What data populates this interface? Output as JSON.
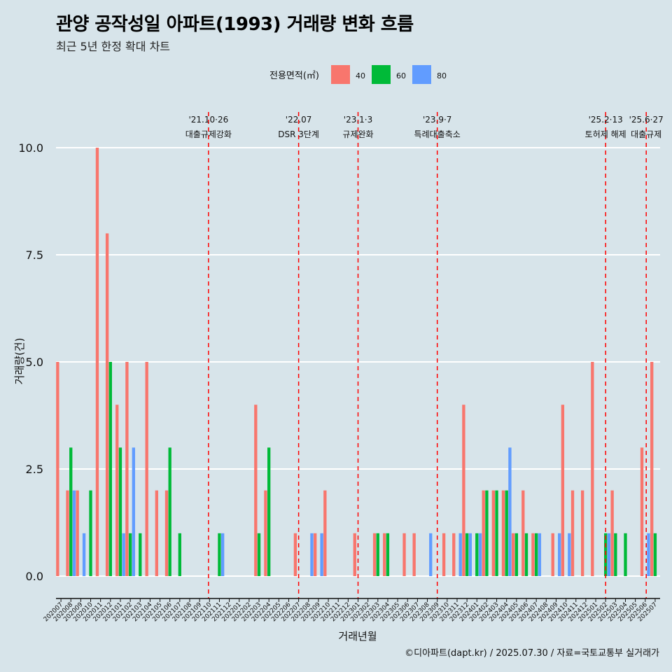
{
  "title": "관양 공작성일 아파트(1993) 거래량 변화 흐름",
  "subtitle": "최근 5년 한정 확대 차트",
  "caption": "©디아파트(dapt.kr) / 2025.07.30 / 자료=국토교통부 실거래가",
  "chart_data": {
    "type": "bar",
    "xlabel": "거래년월",
    "ylabel": "거래량(건)",
    "ylim": [
      0,
      10.6
    ],
    "yticks": [
      "0.0",
      "2.5",
      "5.0",
      "7.5",
      "10.0"
    ],
    "ytick_values": [
      0,
      2.5,
      5,
      7.5,
      10
    ],
    "grid": "horizontal",
    "legend_title": "전용면적(㎡)",
    "legend_position": "top",
    "categories": [
      "202007",
      "202008",
      "202009",
      "202010",
      "202011",
      "202012",
      "202101",
      "202102",
      "202103",
      "202104",
      "202105",
      "202106",
      "202107",
      "202108",
      "202109",
      "202110",
      "202111",
      "202112",
      "202201",
      "202202",
      "202203",
      "202204",
      "202205",
      "202206",
      "202207",
      "202208",
      "202209",
      "202210",
      "202211",
      "202212",
      "202301",
      "202302",
      "202303",
      "202304",
      "202305",
      "202306",
      "202307",
      "202308",
      "202309",
      "202310",
      "202311",
      "202312",
      "202401",
      "202402",
      "202403",
      "202404",
      "202405",
      "202406",
      "202407",
      "202408",
      "202409",
      "202410",
      "202411",
      "202412",
      "202501",
      "202502",
      "202503",
      "202504",
      "202505",
      "202506",
      "202507"
    ],
    "series": [
      {
        "name": "40",
        "color": "#f8766d",
        "values": [
          5,
          2,
          2,
          0,
          10,
          8,
          4,
          5,
          0,
          5,
          2,
          2,
          0,
          0,
          0,
          0,
          0,
          0,
          0,
          0,
          4,
          2,
          0,
          0,
          1,
          0,
          1,
          2,
          0,
          0,
          1,
          0,
          1,
          1,
          0,
          1,
          1,
          0,
          0,
          1,
          1,
          4,
          0,
          2,
          2,
          2,
          1,
          2,
          1,
          0,
          1,
          4,
          2,
          2,
          5,
          0,
          2,
          0,
          0,
          3,
          5
        ]
      },
      {
        "name": "60",
        "color": "#00ba38",
        "values": [
          0,
          3,
          0,
          2,
          0,
          5,
          3,
          1,
          1,
          0,
          0,
          3,
          1,
          0,
          0,
          0,
          1,
          0,
          0,
          0,
          1,
          3,
          0,
          0,
          0,
          0,
          0,
          0,
          0,
          0,
          0,
          0,
          1,
          1,
          0,
          0,
          0,
          0,
          0,
          0,
          0,
          1,
          1,
          2,
          2,
          2,
          1,
          1,
          1,
          0,
          0,
          0,
          0,
          0,
          0,
          1,
          1,
          1,
          0,
          0,
          1
        ]
      },
      {
        "name": "80",
        "color": "#619cff",
        "values": [
          0,
          2,
          1,
          0,
          0,
          0,
          1,
          3,
          0,
          0,
          0,
          0,
          0,
          0,
          0,
          0,
          1,
          0,
          0,
          0,
          0,
          0,
          0,
          0,
          0,
          1,
          1,
          0,
          0,
          0,
          0,
          0,
          0,
          0,
          0,
          0,
          0,
          1,
          0,
          0,
          1,
          1,
          1,
          0,
          0,
          3,
          0,
          0,
          1,
          0,
          1,
          1,
          0,
          0,
          0,
          1,
          0,
          0,
          0,
          1,
          0
        ]
      }
    ],
    "events": [
      {
        "date": "'21.10·26",
        "label": "대출규제강화",
        "pos": 15.4
      },
      {
        "date": "'22.07",
        "label": "DSR 3단계",
        "pos": 24.5
      },
      {
        "date": "'23.1·3",
        "label": "규제완화",
        "pos": 30.5
      },
      {
        "date": "'23.9·7",
        "label": "특례대출축소",
        "pos": 38.5
      },
      {
        "date": "'25.2·13",
        "label": "토허제 해제",
        "pos": 55.5
      },
      {
        "date": "'25.6·27",
        "label": "대출규제",
        "pos": 59.6
      }
    ]
  }
}
